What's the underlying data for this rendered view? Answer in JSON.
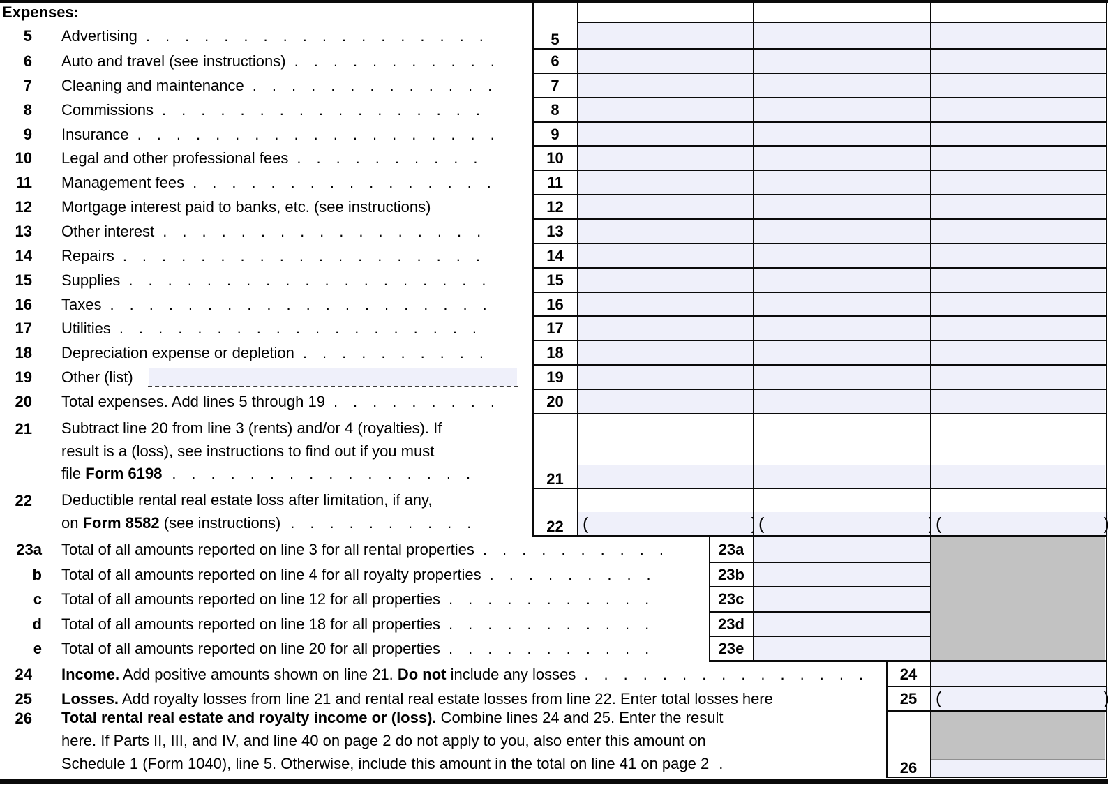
{
  "section": {
    "header": "Expenses:"
  },
  "symbols": {
    "paren_open": "(",
    "paren_close": ")"
  },
  "leader_dots": "................................................",
  "lines": [
    {
      "id": "5",
      "num": "5",
      "box": "5",
      "leader": true,
      "parts": [
        {
          "text": "Advertising"
        }
      ]
    },
    {
      "id": "6",
      "num": "6",
      "box": "6",
      "leader": true,
      "parts": [
        {
          "text": "Auto and travel (see instructions)"
        }
      ]
    },
    {
      "id": "7",
      "num": "7",
      "box": "7",
      "leader": true,
      "parts": [
        {
          "text": "Cleaning and maintenance"
        }
      ]
    },
    {
      "id": "8",
      "num": "8",
      "box": "8",
      "leader": true,
      "parts": [
        {
          "text": "Commissions"
        }
      ]
    },
    {
      "id": "9",
      "num": "9",
      "box": "9",
      "leader": true,
      "parts": [
        {
          "text": "Insurance"
        }
      ]
    },
    {
      "id": "10",
      "num": "10",
      "box": "10",
      "leader": true,
      "parts": [
        {
          "text": "Legal and other professional fees"
        }
      ]
    },
    {
      "id": "11",
      "num": "11",
      "box": "11",
      "leader": true,
      "parts": [
        {
          "text": "Management fees"
        }
      ]
    },
    {
      "id": "12",
      "num": "12",
      "box": "12",
      "leader": false,
      "parts": [
        {
          "text": "Mortgage interest paid to banks, etc. (see instructions)"
        }
      ]
    },
    {
      "id": "13",
      "num": "13",
      "box": "13",
      "leader": true,
      "parts": [
        {
          "text": "Other interest"
        }
      ]
    },
    {
      "id": "14",
      "num": "14",
      "box": "14",
      "leader": true,
      "parts": [
        {
          "text": "Repairs"
        }
      ]
    },
    {
      "id": "15",
      "num": "15",
      "box": "15",
      "leader": true,
      "parts": [
        {
          "text": "Supplies"
        }
      ]
    },
    {
      "id": "16",
      "num": "16",
      "box": "16",
      "leader": true,
      "parts": [
        {
          "text": "Taxes"
        }
      ]
    },
    {
      "id": "17",
      "num": "17",
      "box": "17",
      "leader": true,
      "parts": [
        {
          "text": "Utilities"
        }
      ]
    },
    {
      "id": "18",
      "num": "18",
      "box": "18",
      "leader": true,
      "parts": [
        {
          "text": "Depreciation expense or depletion"
        }
      ]
    },
    {
      "id": "19",
      "num": "19",
      "box": "19",
      "leader": false,
      "parts": [
        {
          "text": "Other (list)"
        }
      ]
    },
    {
      "id": "20",
      "num": "20",
      "box": "20",
      "leader": true,
      "parts": [
        {
          "text": "Total expenses. Add lines 5 through 19"
        }
      ]
    },
    {
      "id": "21",
      "num": "21",
      "box": "21",
      "leader": false,
      "parts": [
        {
          "text": "Subtract line 20 from line 3 (rents) and/or 4 (royalties). If"
        },
        {
          "br": true
        },
        {
          "text": "result is a (loss), see instructions to find out if you must"
        },
        {
          "br": true
        },
        {
          "text": "file "
        },
        {
          "text": "Form 6198",
          "bold": true
        },
        {
          "text": "................",
          "leader": true
        }
      ]
    },
    {
      "id": "22",
      "num": "22",
      "box": "22",
      "leader": false,
      "parts": [
        {
          "text": "Deductible rental real estate loss after limitation, if any,"
        },
        {
          "br": true
        },
        {
          "text": "on "
        },
        {
          "text": "Form 8582",
          "bold": true
        },
        {
          "text": " (see instructions)"
        },
        {
          "text": "..........",
          "leader": true
        }
      ]
    },
    {
      "id": "23a",
      "num": "23a",
      "box": "23a",
      "leader": true,
      "parts": [
        {
          "text": "Total of all amounts reported on line 3 for all rental properties"
        }
      ]
    },
    {
      "id": "23b",
      "num": "b",
      "box": "23b",
      "leader": true,
      "parts": [
        {
          "text": "Total of all amounts reported on line 4 for all royalty properties"
        }
      ]
    },
    {
      "id": "23c",
      "num": "c",
      "box": "23c",
      "leader": true,
      "parts": [
        {
          "text": "Total of all amounts reported on line 12 for all properties"
        }
      ]
    },
    {
      "id": "23d",
      "num": "d",
      "box": "23d",
      "leader": true,
      "parts": [
        {
          "text": "Total of all amounts reported on line 18 for all properties"
        }
      ]
    },
    {
      "id": "23e",
      "num": "e",
      "box": "23e",
      "leader": true,
      "parts": [
        {
          "text": "Total of all amounts reported on line 20 for all properties"
        }
      ]
    },
    {
      "id": "24",
      "num": "24",
      "box": "24",
      "leader": true,
      "parts": [
        {
          "text": "Income.",
          "bold": true
        },
        {
          "text": " Add positive amounts shown on line 21. "
        },
        {
          "text": "Do not",
          "bold": true
        },
        {
          "text": " include any losses"
        }
      ]
    },
    {
      "id": "25",
      "num": "25",
      "box": "25",
      "leader": false,
      "parts": [
        {
          "text": "Losses.",
          "bold": true
        },
        {
          "text": " Add royalty losses from line 21 and rental real estate losses from line 22. Enter total losses here"
        }
      ]
    },
    {
      "id": "26",
      "num": "26",
      "box": "26",
      "leader": false,
      "parts": [
        {
          "text": "Total rental real estate and royalty income or (loss).",
          "bold": true
        },
        {
          "text": " Combine lines 24 and 25. Enter the result"
        },
        {
          "br": true
        },
        {
          "text": "here. If Parts II, III, and IV, and line 40 on page 2 do not apply to you, also enter this amount on"
        },
        {
          "br": true
        },
        {
          "text": "Schedule 1 (Form 1040), line 5. Otherwise, include this amount in the total on line 41 on page 2"
        },
        {
          "text": ".",
          "leader": true
        }
      ]
    },
    {
      "id": "colors",
      "num": "",
      "box": "",
      "leader": false,
      "parts": []
    }
  ],
  "colors": {
    "input_field": "#eff0fa",
    "na_shaded": "#c2c2c2",
    "border": "#0a0a0a"
  }
}
